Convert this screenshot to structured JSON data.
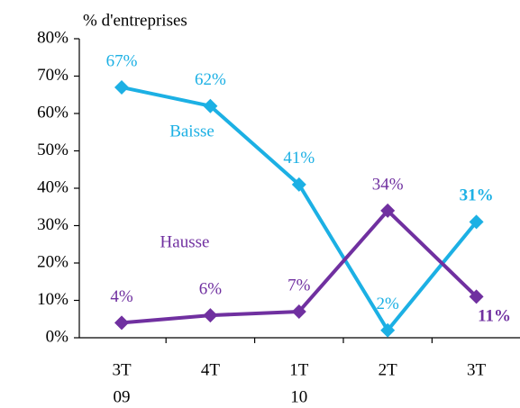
{
  "chart_data": {
    "type": "line",
    "y_label": "% d'entreprises",
    "categories": [
      [
        "3T",
        "09"
      ],
      [
        "4T"
      ],
      [
        "1T",
        "10"
      ],
      [
        "2T"
      ],
      [
        "3T"
      ]
    ],
    "series": [
      {
        "name": "Baisse",
        "color": "#1cb0e4",
        "values": [
          67,
          62,
          41,
          2,
          31
        ],
        "value_labels": [
          "67%",
          "62%",
          "41%",
          "2%",
          "31%"
        ]
      },
      {
        "name": "Hausse",
        "color": "#7030a0",
        "values": [
          4,
          6,
          7,
          34,
          11
        ],
        "value_labels": [
          "4%",
          "6%",
          "7%",
          "34%",
          "11%"
        ]
      }
    ],
    "ylim": [
      0,
      80
    ],
    "yticks": [
      {
        "value": 0,
        "label": "0%"
      },
      {
        "value": 10,
        "label": "10%"
      },
      {
        "value": 20,
        "label": "20%"
      },
      {
        "value": 30,
        "label": "30%"
      },
      {
        "value": 40,
        "label": "40%"
      },
      {
        "value": 50,
        "label": "50%"
      },
      {
        "value": 60,
        "label": "60%"
      },
      {
        "value": 70,
        "label": "70%"
      },
      {
        "value": 80,
        "label": "80%"
      }
    ]
  }
}
